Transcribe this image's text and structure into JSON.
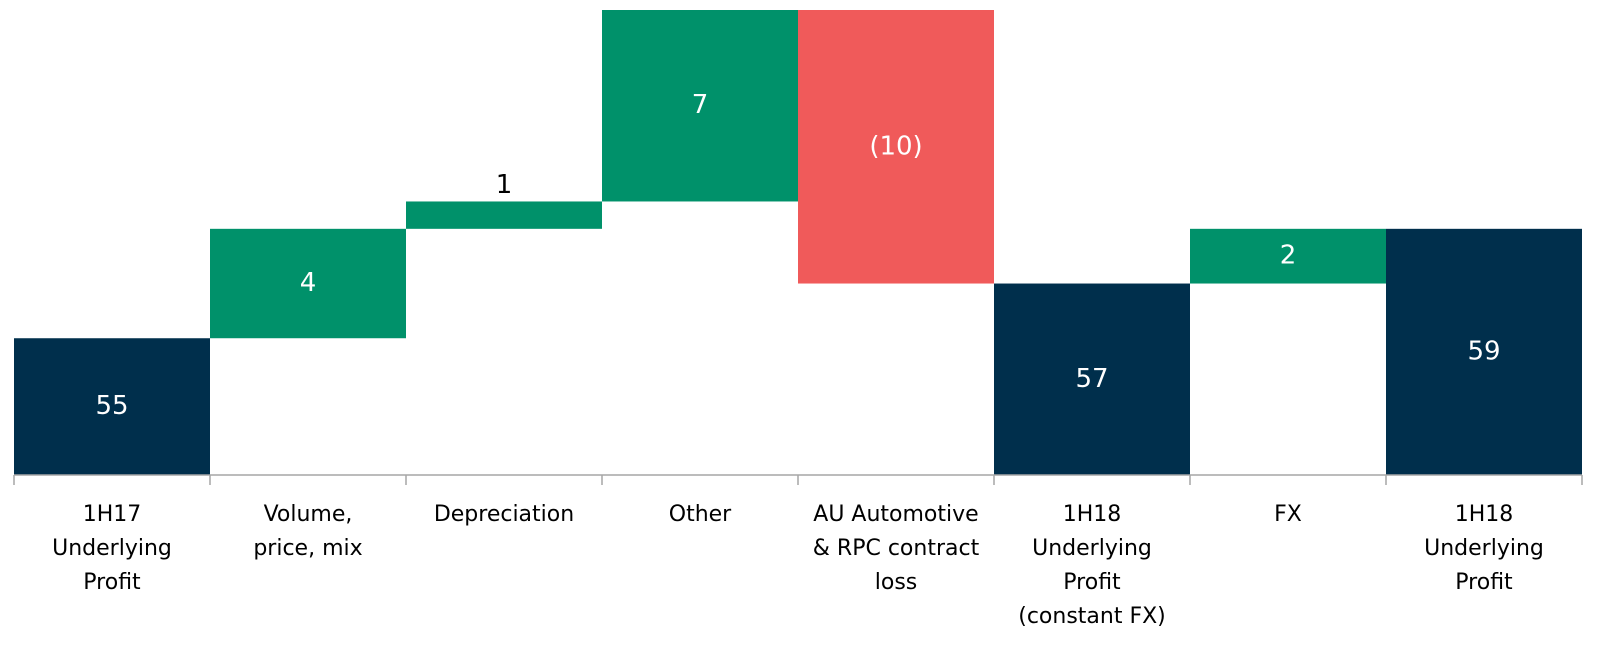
{
  "chart_data": {
    "type": "waterfall",
    "categories": [
      [
        "1H17",
        "Underlying",
        "Profit"
      ],
      [
        "Volume,",
        "price, mix"
      ],
      [
        "Depreciation"
      ],
      [
        "Other"
      ],
      [
        "AU Automotive",
        "& RPC contract",
        "loss"
      ],
      [
        "1H18",
        "Underlying",
        "Profit",
        "(constant FX)"
      ],
      [
        "FX"
      ],
      [
        "1H18",
        "Underlying",
        "Profit"
      ]
    ],
    "values": [
      55,
      4,
      1,
      7,
      -10,
      57,
      2,
      59
    ],
    "value_labels": [
      "55",
      "4",
      "1",
      "7",
      "(10)",
      "57",
      "2",
      "59"
    ],
    "measure": [
      "total",
      "relative",
      "relative",
      "relative",
      "relative",
      "total",
      "relative",
      "total"
    ],
    "colors": {
      "total": "#002f4c",
      "increase": "#00916a",
      "decrease": "#f05a5a"
    },
    "ylim": [
      50,
      67
    ]
  }
}
